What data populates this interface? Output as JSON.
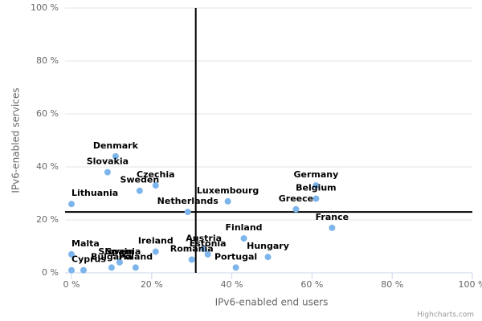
{
  "chart_data": {
    "type": "scatter",
    "x_label": "IPv6-enabled end users",
    "y_label": "IPv6-enabled services",
    "credit": "Highcharts.com",
    "color": "#7cb5ec",
    "grid": true,
    "xlim": [
      0,
      100
    ],
    "ylim": [
      0,
      100
    ],
    "xticks": [
      {
        "value": 0,
        "label": "0 %"
      },
      {
        "value": 20,
        "label": "20 %"
      },
      {
        "value": 40,
        "label": "40 %"
      },
      {
        "value": 60,
        "label": "60 %"
      },
      {
        "value": 80,
        "label": "80 %"
      },
      {
        "value": 100,
        "label": "100 %"
      }
    ],
    "yticks": [
      {
        "value": 0,
        "label": "0 %"
      },
      {
        "value": 20,
        "label": "20 %"
      },
      {
        "value": 40,
        "label": "40 %"
      },
      {
        "value": 60,
        "label": "60 %"
      },
      {
        "value": 80,
        "label": "80 %"
      },
      {
        "value": 100,
        "label": "100 %"
      }
    ],
    "reference_lines": {
      "x": 31,
      "y": 23
    },
    "series": [
      {
        "labels": [
          "Denmark",
          "Slovakia",
          "Czechia",
          "Sweden",
          "Lithuania",
          "Netherlands",
          "Luxembourg",
          "Germany",
          "Belgium",
          "Greece",
          "France",
          "Finland",
          "Austria",
          "Estonia",
          "Romania",
          "Hungary",
          "Portugal",
          "Ireland",
          "Malta",
          "Spain",
          "Slovenia",
          "Bulgaria",
          "Poland",
          "Cyprus",
          null
        ],
        "x": [
          11,
          9,
          21,
          17,
          0,
          29,
          39,
          61,
          61,
          56,
          65,
          43,
          33,
          34,
          30,
          49,
          41,
          21,
          0,
          12,
          12,
          10,
          16,
          0,
          3
        ],
        "values": [
          44,
          38,
          33,
          31,
          26,
          23,
          27,
          33,
          28,
          24,
          17,
          13,
          9,
          7,
          5,
          6,
          2,
          8,
          7,
          4,
          4,
          2,
          2,
          1,
          1
        ]
      }
    ]
  }
}
